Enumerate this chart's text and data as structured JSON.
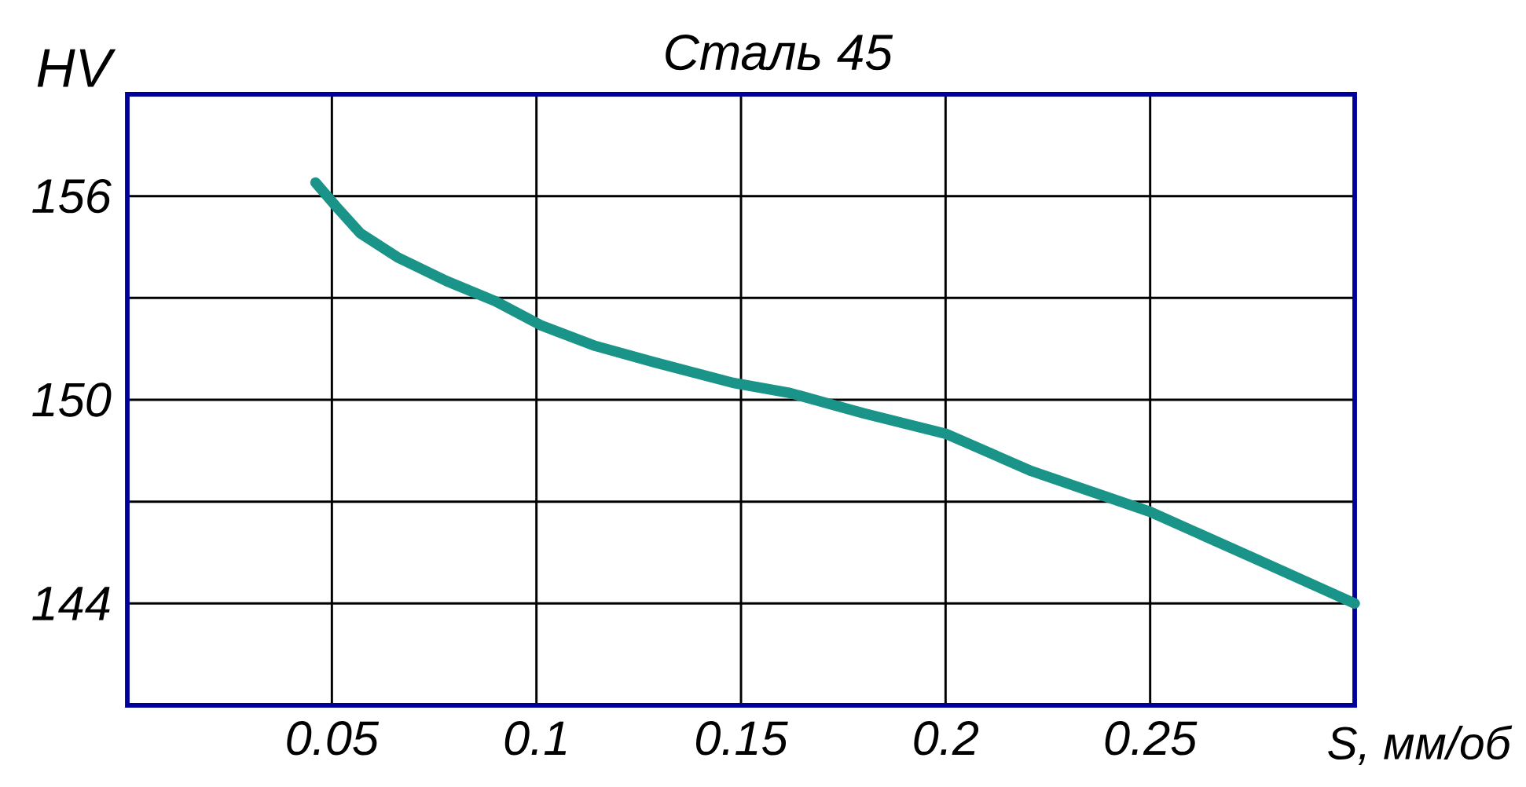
{
  "chart_data": {
    "type": "line",
    "title": "Сталь 45",
    "xlabel": "S, мм/об",
    "ylabel": "HV",
    "x": [
      0.046,
      0.051,
      0.057,
      0.066,
      0.078,
      0.09,
      0.101,
      0.114,
      0.129,
      0.148,
      0.162,
      0.18,
      0.2,
      0.221,
      0.25,
      0.276,
      0.3
    ],
    "series": [
      {
        "color": "#1a9488",
        "values": [
          156.4,
          155.7,
          154.9,
          154.2,
          153.5,
          152.9,
          152.2,
          151.6,
          151.1,
          150.5,
          150.2,
          149.6,
          149.0,
          147.9,
          146.7,
          145.3,
          144.0
        ]
      }
    ],
    "xlim": [
      0,
      0.3
    ],
    "ylim": [
      141,
      159
    ],
    "xticks": [
      0.05,
      0.1,
      0.15,
      0.2,
      0.25
    ],
    "yticks": [
      {
        "value": 144,
        "label": "144"
      },
      {
        "value": 147,
        "label": null
      },
      {
        "value": 150,
        "label": "150"
      },
      {
        "value": 153,
        "label": null
      },
      {
        "value": 156,
        "label": "156"
      }
    ],
    "grid": true,
    "marker": "none",
    "line_style": "solid"
  }
}
